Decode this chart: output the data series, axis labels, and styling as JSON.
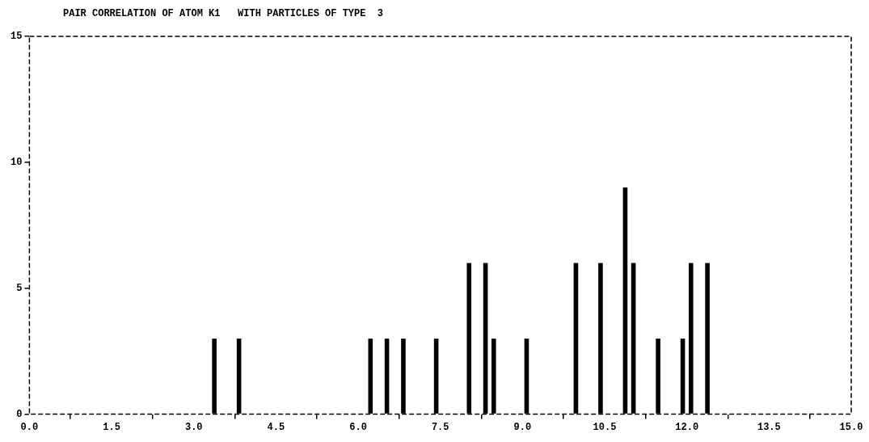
{
  "chart_data": {
    "type": "histogram",
    "title": "PAIR CORRELATION OF ATOM K1   WITH PARTICLES OF TYPE  3",
    "bins": [
      0,
      0.15,
      0.3,
      0.45,
      0.6,
      0.75,
      0.9,
      1.05,
      1.2,
      1.35,
      1.5,
      1.65,
      1.8,
      1.95,
      2.1,
      2.25,
      2.4,
      2.55,
      2.7,
      2.85,
      3,
      3.15,
      3.3,
      3.45,
      3.6,
      3.75,
      3.9,
      4.05,
      4.2,
      4.35,
      4.5,
      4.65,
      4.8,
      4.95,
      5.1,
      5.25,
      5.4,
      5.55,
      5.7,
      5.85,
      6,
      6.15,
      6.3,
      6.45,
      6.6,
      6.75,
      6.9,
      7.05,
      7.2,
      7.35,
      7.5,
      7.65,
      7.8,
      7.95,
      8.1,
      8.25,
      8.4,
      8.55,
      8.7,
      8.85,
      9,
      9.15,
      9.3,
      9.45,
      9.6,
      9.75,
      9.9,
      10.05,
      10.2,
      10.35,
      10.5,
      10.65,
      10.8,
      10.95,
      11.1,
      11.25,
      11.4,
      11.55,
      11.7,
      11.85,
      12,
      12.15,
      12.3,
      12.45,
      12.6,
      12.75,
      12.9,
      13.05,
      13.2,
      13.35,
      13.5,
      13.65,
      13.8,
      13.95,
      14.1,
      14.25,
      14.4,
      14.55,
      14.7,
      14.85,
      15
    ],
    "values": [
      0,
      0,
      0,
      0,
      0,
      0,
      0,
      0,
      0,
      0,
      0,
      0,
      0,
      0,
      0,
      0,
      0,
      0,
      0,
      0,
      0,
      0,
      3,
      0,
      0,
      3,
      0,
      0,
      0,
      0,
      0,
      0,
      0,
      0,
      0,
      0,
      0,
      0,
      0,
      0,
      0,
      3,
      0,
      3,
      0,
      3,
      0,
      0,
      0,
      3,
      0,
      0,
      0,
      6,
      0,
      6,
      3,
      0,
      0,
      0,
      3,
      0,
      0,
      0,
      0,
      0,
      6,
      0,
      0,
      6,
      0,
      0,
      9,
      6,
      0,
      0,
      3,
      0,
      0,
      3,
      6,
      0,
      6,
      0,
      0,
      0,
      0,
      0,
      0,
      0,
      0,
      0,
      0,
      0,
      0,
      0,
      0,
      0,
      0,
      0
    ],
    "color": "#000000",
    "xlim": [
      0,
      15
    ],
    "xticks": [
      {
        "value": 0,
        "label": "0.0"
      },
      {
        "value": 1.5,
        "label": "1.5"
      },
      {
        "value": 3,
        "label": "3.0"
      },
      {
        "value": 4.5,
        "label": "4.5"
      },
      {
        "value": 6,
        "label": "6.0"
      },
      {
        "value": 7.5,
        "label": "7.5"
      },
      {
        "value": 9,
        "label": "9.0"
      },
      {
        "value": 10.5,
        "label": "10.5"
      },
      {
        "value": 12,
        "label": "12.0"
      },
      {
        "value": 13.5,
        "label": "13.5"
      },
      {
        "value": 15,
        "label": "15.0"
      }
    ],
    "ylim": [
      0,
      15
    ],
    "yticks": [
      0,
      5,
      10,
      15
    ],
    "grid": false,
    "legend": false
  }
}
